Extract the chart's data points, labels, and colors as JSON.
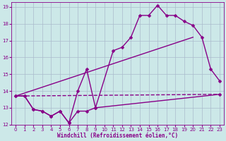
{
  "xlabel": "Windchill (Refroidissement éolien,°C)",
  "background_color": "#cce8e8",
  "grid_color": "#aabbcc",
  "line_color": "#880088",
  "xlim": [
    -0.5,
    23.5
  ],
  "ylim": [
    12,
    19.3
  ],
  "xticks": [
    0,
    1,
    2,
    3,
    4,
    5,
    6,
    7,
    8,
    9,
    10,
    11,
    12,
    13,
    14,
    15,
    16,
    17,
    18,
    19,
    20,
    21,
    22,
    23
  ],
  "yticks": [
    12,
    13,
    14,
    15,
    16,
    17,
    18,
    19
  ],
  "series1_x": [
    0,
    1,
    2,
    3,
    4,
    5,
    6,
    7,
    8,
    9,
    23
  ],
  "series1_y": [
    13.7,
    13.7,
    12.9,
    12.8,
    12.5,
    12.8,
    12.1,
    12.8,
    12.8,
    13.0,
    13.8
  ],
  "series2_x": [
    0,
    23
  ],
  "series2_y": [
    13.7,
    13.8
  ],
  "series3_x": [
    0,
    1,
    2,
    3,
    4,
    5,
    6,
    7,
    8,
    9,
    11,
    12,
    13,
    14,
    15,
    16,
    17,
    18,
    19,
    20,
    21,
    22,
    23
  ],
  "series3_y": [
    13.7,
    13.7,
    12.9,
    12.8,
    12.5,
    12.8,
    12.1,
    14.0,
    15.3,
    13.0,
    16.4,
    16.6,
    17.2,
    18.5,
    18.5,
    19.1,
    18.5,
    18.5,
    18.15,
    17.9,
    17.2,
    15.3,
    14.6
  ],
  "series4_x": [
    0,
    20
  ],
  "series4_y": [
    13.7,
    17.2
  ]
}
